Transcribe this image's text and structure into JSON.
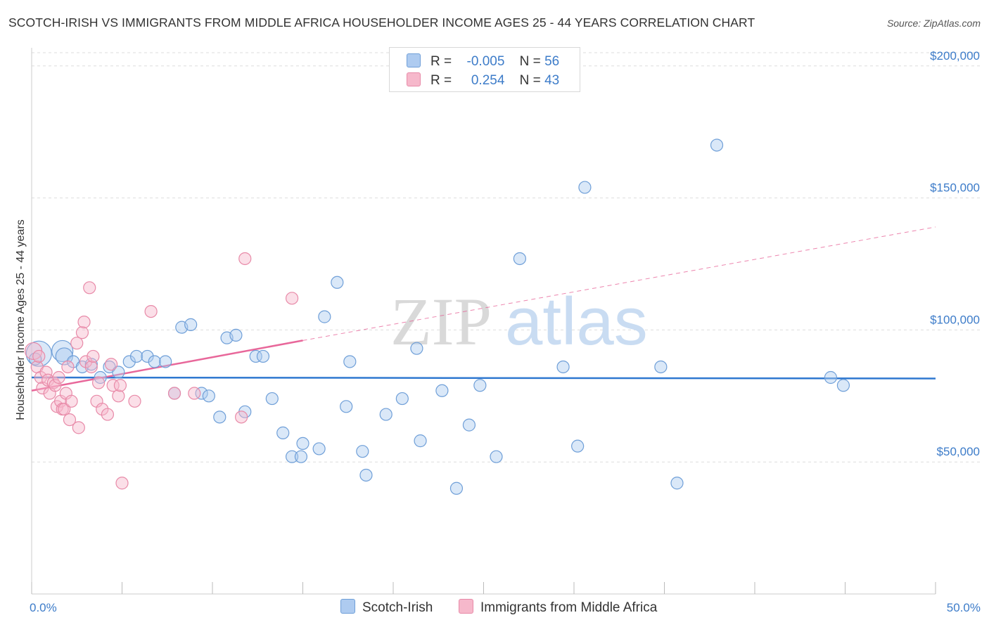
{
  "title": "SCOTCH-IRISH VS IMMIGRANTS FROM MIDDLE AFRICA HOUSEHOLDER INCOME AGES 25 - 44 YEARS CORRELATION CHART",
  "source": "Source: ZipAtlas.com",
  "watermark": {
    "zip": "ZIP",
    "atlas": "atlas"
  },
  "legend": {
    "r_label": "R =",
    "n_label": "N =",
    "series": [
      {
        "name": "Scotch-Irish",
        "r": "-0.005",
        "n": "56"
      },
      {
        "name": "Immigrants from Middle Africa",
        "r": "0.254",
        "n": "43"
      }
    ]
  },
  "colors": {
    "blue_fill": "#aecbf0",
    "blue_stroke": "#6f9fd8",
    "blue_line": "#2f78d0",
    "pink_fill": "#f6b8cb",
    "pink_stroke": "#e88aa8",
    "pink_line": "#e8679a",
    "grid": "#dddddd",
    "axis_text": "#3d7cc9"
  },
  "chart_data": {
    "type": "scatter",
    "title": "SCOTCH-IRISH VS IMMIGRANTS FROM MIDDLE AFRICA HOUSEHOLDER INCOME AGES 25 - 44 YEARS CORRELATION CHART",
    "xlabel": "",
    "ylabel": "Householder Income Ages 25 - 44 years",
    "xlim": [
      0,
      50
    ],
    "ylim": [
      0,
      205000
    ],
    "x_tick_labels": [
      "0.0%",
      "50.0%"
    ],
    "y_ticks": [
      50000,
      100000,
      150000,
      200000
    ],
    "y_tick_labels": [
      "$50,000",
      "$100,000",
      "$150,000",
      "$200,000"
    ],
    "legend_position": "top-center",
    "series": [
      {
        "name": "Scotch-Irish",
        "color": "blue",
        "trend": {
          "x": [
            0,
            50
          ],
          "y": [
            82000,
            81600
          ],
          "dashed_extension": false
        },
        "points": [
          {
            "x": 0.4,
            "y": 91000,
            "size": "xl"
          },
          {
            "x": 1.7,
            "y": 92000,
            "size": "l"
          },
          {
            "x": 1.8,
            "y": 90000,
            "size": "m"
          },
          {
            "x": 2.3,
            "y": 88000,
            "size": "s"
          },
          {
            "x": 2.8,
            "y": 86000,
            "size": "s"
          },
          {
            "x": 3.3,
            "y": 87000,
            "size": "s"
          },
          {
            "x": 3.8,
            "y": 82000,
            "size": "s"
          },
          {
            "x": 4.3,
            "y": 86000,
            "size": "s"
          },
          {
            "x": 4.8,
            "y": 84000,
            "size": "s"
          },
          {
            "x": 5.4,
            "y": 88000,
            "size": "s"
          },
          {
            "x": 5.8,
            "y": 90000,
            "size": "s"
          },
          {
            "x": 6.4,
            "y": 90000,
            "size": "s"
          },
          {
            "x": 6.8,
            "y": 88000,
            "size": "s"
          },
          {
            "x": 7.4,
            "y": 88000,
            "size": "s"
          },
          {
            "x": 7.9,
            "y": 76000,
            "size": "s"
          },
          {
            "x": 8.3,
            "y": 101000,
            "size": "s"
          },
          {
            "x": 8.8,
            "y": 102000,
            "size": "s"
          },
          {
            "x": 9.4,
            "y": 76000,
            "size": "s"
          },
          {
            "x": 9.8,
            "y": 75000,
            "size": "s"
          },
          {
            "x": 10.4,
            "y": 67000,
            "size": "s"
          },
          {
            "x": 10.8,
            "y": 97000,
            "size": "s"
          },
          {
            "x": 11.3,
            "y": 98000,
            "size": "s"
          },
          {
            "x": 11.8,
            "y": 69000,
            "size": "s"
          },
          {
            "x": 12.4,
            "y": 90000,
            "size": "s"
          },
          {
            "x": 12.8,
            "y": 90000,
            "size": "s"
          },
          {
            "x": 13.3,
            "y": 74000,
            "size": "s"
          },
          {
            "x": 13.9,
            "y": 61000,
            "size": "s"
          },
          {
            "x": 14.4,
            "y": 52000,
            "size": "s"
          },
          {
            "x": 14.9,
            "y": 52000,
            "size": "s"
          },
          {
            "x": 15.0,
            "y": 57000,
            "size": "s"
          },
          {
            "x": 15.9,
            "y": 55000,
            "size": "s"
          },
          {
            "x": 16.2,
            "y": 105000,
            "size": "s"
          },
          {
            "x": 16.9,
            "y": 118000,
            "size": "s"
          },
          {
            "x": 17.4,
            "y": 71000,
            "size": "s"
          },
          {
            "x": 17.6,
            "y": 88000,
            "size": "s"
          },
          {
            "x": 18.3,
            "y": 54000,
            "size": "s"
          },
          {
            "x": 18.5,
            "y": 45000,
            "size": "s"
          },
          {
            "x": 19.6,
            "y": 68000,
            "size": "s"
          },
          {
            "x": 20.5,
            "y": 74000,
            "size": "s"
          },
          {
            "x": 21.3,
            "y": 93000,
            "size": "s"
          },
          {
            "x": 21.5,
            "y": 58000,
            "size": "s"
          },
          {
            "x": 22.7,
            "y": 77000,
            "size": "s"
          },
          {
            "x": 23.5,
            "y": 40000,
            "size": "s"
          },
          {
            "x": 24.2,
            "y": 64000,
            "size": "s"
          },
          {
            "x": 24.8,
            "y": 79000,
            "size": "s"
          },
          {
            "x": 25.7,
            "y": 52000,
            "size": "s"
          },
          {
            "x": 27.0,
            "y": 127000,
            "size": "s"
          },
          {
            "x": 29.4,
            "y": 86000,
            "size": "s"
          },
          {
            "x": 30.2,
            "y": 56000,
            "size": "s"
          },
          {
            "x": 30.6,
            "y": 154000,
            "size": "s"
          },
          {
            "x": 34.8,
            "y": 86000,
            "size": "s"
          },
          {
            "x": 35.7,
            "y": 42000,
            "size": "s"
          },
          {
            "x": 37.9,
            "y": 170000,
            "size": "s"
          },
          {
            "x": 44.2,
            "y": 82000,
            "size": "s"
          },
          {
            "x": 44.9,
            "y": 79000,
            "size": "s"
          },
          {
            "x": 0.2,
            "y": 89000,
            "size": "s"
          }
        ]
      },
      {
        "name": "Immigrants from Middle Africa",
        "color": "pink",
        "trend": {
          "x": [
            0,
            15
          ],
          "y": [
            77000,
            96000
          ],
          "dashed_extension": {
            "x": [
              15,
              50
            ],
            "y": [
              96000,
              139000
            ]
          }
        },
        "points": [
          {
            "x": 0.1,
            "y": 92000,
            "size": "m"
          },
          {
            "x": 0.3,
            "y": 86000,
            "size": "s"
          },
          {
            "x": 0.5,
            "y": 82000,
            "size": "s"
          },
          {
            "x": 0.6,
            "y": 78000,
            "size": "s"
          },
          {
            "x": 0.8,
            "y": 84000,
            "size": "s"
          },
          {
            "x": 0.9,
            "y": 81000,
            "size": "s"
          },
          {
            "x": 1.0,
            "y": 76000,
            "size": "s"
          },
          {
            "x": 1.2,
            "y": 80000,
            "size": "s"
          },
          {
            "x": 1.3,
            "y": 79000,
            "size": "s"
          },
          {
            "x": 1.4,
            "y": 71000,
            "size": "s"
          },
          {
            "x": 1.6,
            "y": 73000,
            "size": "s"
          },
          {
            "x": 1.7,
            "y": 70000,
            "size": "s"
          },
          {
            "x": 1.8,
            "y": 70000,
            "size": "s"
          },
          {
            "x": 1.9,
            "y": 76000,
            "size": "s"
          },
          {
            "x": 2.1,
            "y": 66000,
            "size": "s"
          },
          {
            "x": 2.2,
            "y": 73000,
            "size": "s"
          },
          {
            "x": 2.0,
            "y": 86000,
            "size": "s"
          },
          {
            "x": 2.5,
            "y": 95000,
            "size": "s"
          },
          {
            "x": 2.6,
            "y": 63000,
            "size": "s"
          },
          {
            "x": 2.8,
            "y": 99000,
            "size": "s"
          },
          {
            "x": 2.9,
            "y": 103000,
            "size": "s"
          },
          {
            "x": 3.0,
            "y": 88000,
            "size": "s"
          },
          {
            "x": 3.2,
            "y": 116000,
            "size": "s"
          },
          {
            "x": 3.3,
            "y": 86000,
            "size": "s"
          },
          {
            "x": 3.4,
            "y": 90000,
            "size": "s"
          },
          {
            "x": 3.6,
            "y": 73000,
            "size": "s"
          },
          {
            "x": 3.7,
            "y": 80000,
            "size": "s"
          },
          {
            "x": 3.9,
            "y": 70000,
            "size": "s"
          },
          {
            "x": 4.2,
            "y": 68000,
            "size": "s"
          },
          {
            "x": 4.5,
            "y": 79000,
            "size": "s"
          },
          {
            "x": 4.4,
            "y": 87000,
            "size": "s"
          },
          {
            "x": 4.8,
            "y": 75000,
            "size": "s"
          },
          {
            "x": 4.9,
            "y": 79000,
            "size": "s"
          },
          {
            "x": 5.0,
            "y": 42000,
            "size": "s"
          },
          {
            "x": 5.7,
            "y": 73000,
            "size": "s"
          },
          {
            "x": 6.6,
            "y": 107000,
            "size": "s"
          },
          {
            "x": 7.9,
            "y": 76000,
            "size": "s"
          },
          {
            "x": 9.0,
            "y": 76000,
            "size": "s"
          },
          {
            "x": 11.8,
            "y": 127000,
            "size": "s"
          },
          {
            "x": 11.6,
            "y": 67000,
            "size": "s"
          },
          {
            "x": 14.4,
            "y": 112000,
            "size": "s"
          },
          {
            "x": 1.5,
            "y": 82000,
            "size": "s"
          },
          {
            "x": 0.4,
            "y": 90000,
            "size": "s"
          }
        ]
      }
    ]
  }
}
